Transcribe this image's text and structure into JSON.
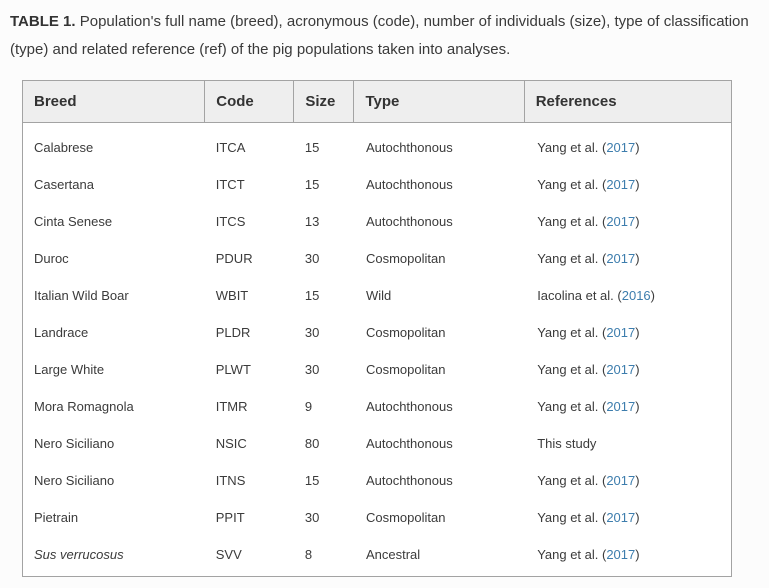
{
  "caption": {
    "label": "TABLE 1.",
    "text": " Population's full name (breed), acronymous (code), number of individuals (size), type of classification (type) and related reference (ref) of the pig populations taken into analyses."
  },
  "table": {
    "columns": [
      "Breed",
      "Code",
      "Size",
      "Type",
      "References"
    ],
    "rows": [
      {
        "breed": "Calabrese",
        "italic": false,
        "code": "ITCA",
        "size": "15",
        "type": "Autochthonous",
        "ref_prefix": "Yang et al. (",
        "ref_year": "2017",
        "ref_suffix": ")"
      },
      {
        "breed": "Casertana",
        "italic": false,
        "code": "ITCT",
        "size": "15",
        "type": "Autochthonous",
        "ref_prefix": "Yang et al. (",
        "ref_year": "2017",
        "ref_suffix": ")"
      },
      {
        "breed": "Cinta Senese",
        "italic": false,
        "code": "ITCS",
        "size": "13",
        "type": "Autochthonous",
        "ref_prefix": "Yang et al. (",
        "ref_year": "2017",
        "ref_suffix": ")"
      },
      {
        "breed": "Duroc",
        "italic": false,
        "code": "PDUR",
        "size": "30",
        "type": "Cosmopolitan",
        "ref_prefix": "Yang et al. (",
        "ref_year": "2017",
        "ref_suffix": ")"
      },
      {
        "breed": "Italian Wild Boar",
        "italic": false,
        "code": "WBIT",
        "size": "15",
        "type": "Wild",
        "ref_prefix": "Iacolina et al. (",
        "ref_year": "2016",
        "ref_suffix": ")"
      },
      {
        "breed": "Landrace",
        "italic": false,
        "code": "PLDR",
        "size": "30",
        "type": "Cosmopolitan",
        "ref_prefix": "Yang et al. (",
        "ref_year": "2017",
        "ref_suffix": ")"
      },
      {
        "breed": "Large White",
        "italic": false,
        "code": "PLWT",
        "size": "30",
        "type": "Cosmopolitan",
        "ref_prefix": "Yang et al. (",
        "ref_year": "2017",
        "ref_suffix": ")"
      },
      {
        "breed": "Mora Romagnola",
        "italic": false,
        "code": "ITMR",
        "size": "9",
        "type": "Autochthonous",
        "ref_prefix": "Yang et al. (",
        "ref_year": "2017",
        "ref_suffix": ")"
      },
      {
        "breed": "Nero Siciliano",
        "italic": false,
        "code": "NSIC",
        "size": "80",
        "type": "Autochthonous",
        "ref_prefix": "This study",
        "ref_year": "",
        "ref_suffix": ""
      },
      {
        "breed": "Nero Siciliano",
        "italic": false,
        "code": "ITNS",
        "size": "15",
        "type": "Autochthonous",
        "ref_prefix": "Yang et al. (",
        "ref_year": "2017",
        "ref_suffix": ")"
      },
      {
        "breed": "Pietrain",
        "italic": false,
        "code": "PPIT",
        "size": "30",
        "type": "Cosmopolitan",
        "ref_prefix": "Yang et al. (",
        "ref_year": "2017",
        "ref_suffix": ")"
      },
      {
        "breed": "Sus verrucosus",
        "italic": true,
        "code": "SVV",
        "size": "8",
        "type": "Ancestral",
        "ref_prefix": "Yang et al. (",
        "ref_year": "2017",
        "ref_suffix": ")"
      }
    ]
  },
  "colors": {
    "link": "#3d7dad",
    "header_background": "#eeeeee",
    "table_border": "#a3a3a3",
    "text": "#3b3b3b"
  }
}
